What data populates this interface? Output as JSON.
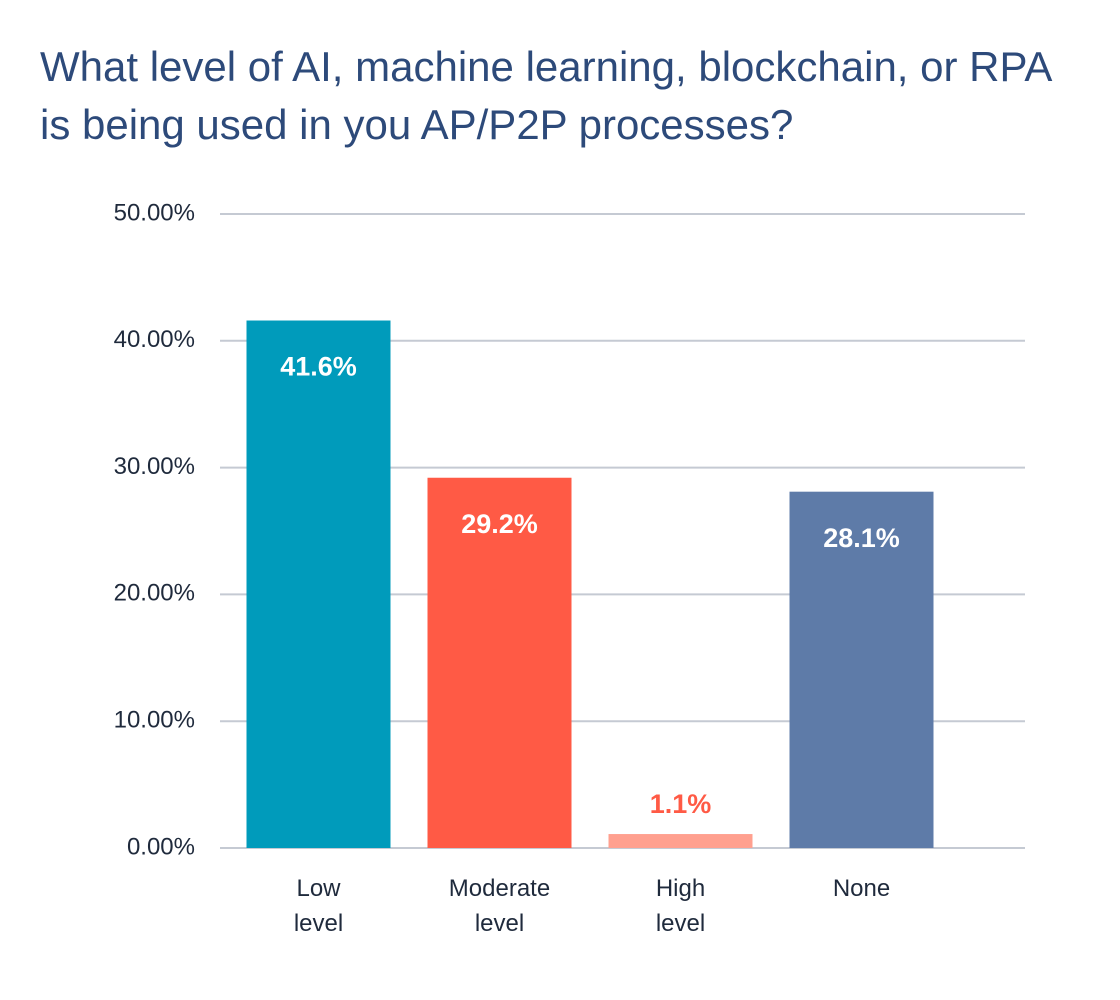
{
  "chart_data": {
    "type": "bar",
    "title": "What level of AI, machine learning, blockchain, or RPA is being used in you AP/P2P processes?",
    "categories": [
      "Low level",
      "Moderate level",
      "High level",
      "None"
    ],
    "values": [
      41.6,
      29.2,
      1.1,
      28.1
    ],
    "value_labels": [
      "41.6%",
      "29.2%",
      "1.1%",
      "28.1%"
    ],
    "colors": [
      "#009bbb",
      "#ff5a45",
      "#ffa08f",
      "#5e7ba8"
    ],
    "ylim": [
      0,
      50
    ],
    "yticks": [
      {
        "value": 0,
        "label": "0.00%"
      },
      {
        "value": 10,
        "label": "10.00%"
      },
      {
        "value": 20,
        "label": "20.00%"
      },
      {
        "value": 30,
        "label": "30.00%"
      },
      {
        "value": 40,
        "label": "40.00%"
      },
      {
        "value": 50,
        "label": "50.00%"
      }
    ],
    "grid": true
  }
}
